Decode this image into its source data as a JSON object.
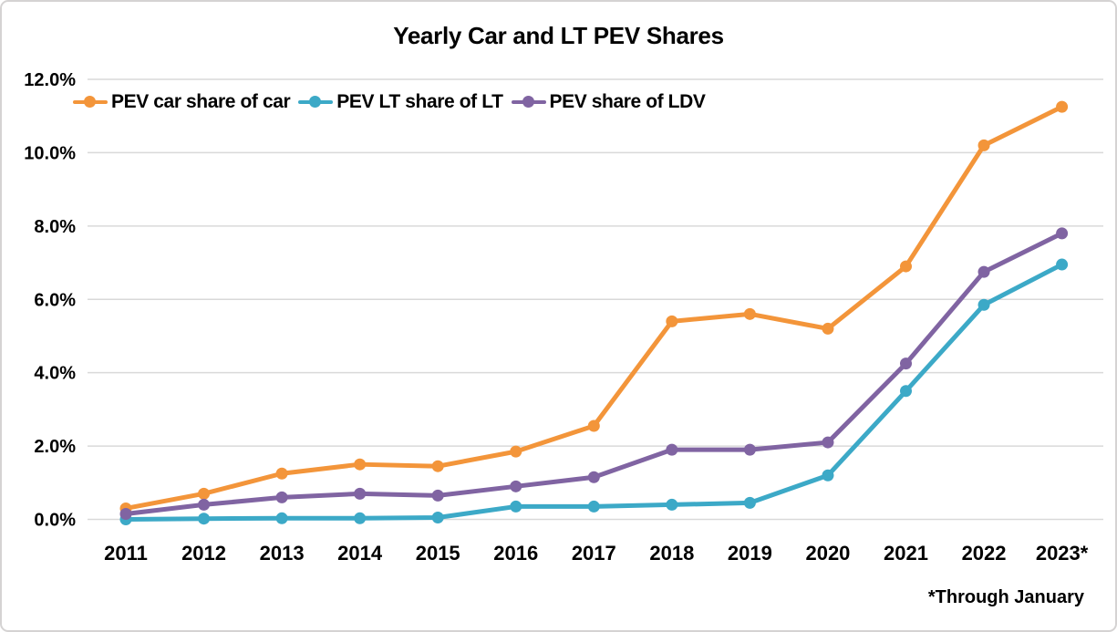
{
  "footnote": "*Through January",
  "colors": {
    "background": "#ffffff",
    "frame_border": "#d5d3d3",
    "gridline": "#d9d9d9",
    "text": "#000000",
    "series_car": "#f3953a",
    "series_lt": "#3ca9c7",
    "series_ldv": "#8064a2"
  },
  "chart_data": {
    "type": "line",
    "title": "Yearly Car and LT PEV Shares",
    "xlabel": "",
    "ylabel": "",
    "categories": [
      "2011",
      "2012",
      "2013",
      "2014",
      "2015",
      "2016",
      "2017",
      "2018",
      "2019",
      "2020",
      "2021",
      "2022",
      "2023*"
    ],
    "series": [
      {
        "name": "PEV car share of car",
        "color": "#f3953a",
        "values": [
          0.3,
          0.7,
          1.25,
          1.5,
          1.45,
          1.85,
          2.55,
          5.4,
          5.6,
          5.2,
          6.9,
          10.2,
          11.25
        ]
      },
      {
        "name": "PEV LT share of LT",
        "color": "#3ca9c7",
        "values": [
          0.0,
          0.02,
          0.03,
          0.03,
          0.05,
          0.35,
          0.35,
          0.4,
          0.45,
          1.2,
          3.5,
          5.85,
          6.95
        ]
      },
      {
        "name": "PEV share of LDV",
        "color": "#8064a2",
        "values": [
          0.15,
          0.4,
          0.6,
          0.7,
          0.65,
          0.9,
          1.15,
          1.9,
          1.9,
          2.1,
          4.25,
          6.75,
          7.8
        ]
      }
    ],
    "ylim": [
      0,
      12
    ],
    "ytick_values": [
      0,
      2,
      4,
      6,
      8,
      10,
      12
    ],
    "ytick_labels": [
      "0.0%",
      "2.0%",
      "4.0%",
      "6.0%",
      "8.0%",
      "10.0%",
      "12.0%"
    ],
    "grid": true,
    "legend_position": "top-left-inline",
    "marker": "circle",
    "footnote": "*Through January"
  }
}
